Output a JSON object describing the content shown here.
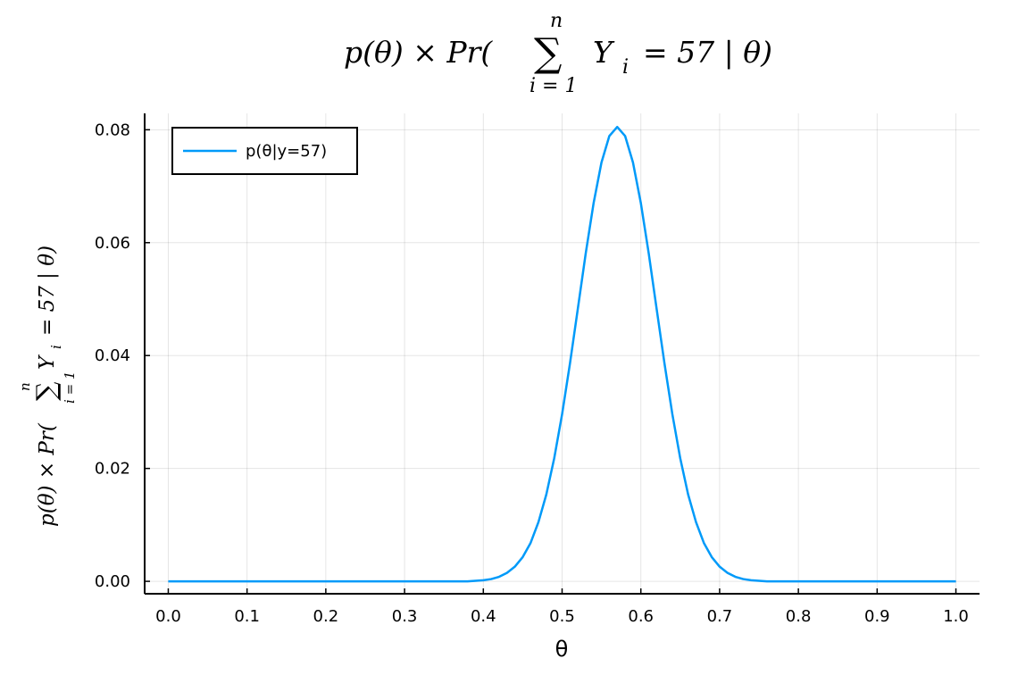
{
  "chart_data": {
    "type": "line",
    "title": {
      "prefix": "p(θ) × Pr(",
      "sum": "∑",
      "upper": "n",
      "lower": "i = 1",
      "var": "Y",
      "sub": "i",
      "rest": "= 57 | θ)"
    },
    "ylabel": {
      "prefix": "p(θ) × Pr(",
      "sum": "∑",
      "upper": "n",
      "lower": "i = 1",
      "var": "Y",
      "sub": "i",
      "rest": "= 57 | θ)"
    },
    "xlabel": "θ",
    "x": [
      0,
      0.01,
      0.02,
      0.03,
      0.04,
      0.05,
      0.06,
      0.07,
      0.08,
      0.09,
      0.1,
      0.11,
      0.12,
      0.13,
      0.14,
      0.15,
      0.16,
      0.17,
      0.18,
      0.19,
      0.2,
      0.21,
      0.22,
      0.23,
      0.24,
      0.25,
      0.26,
      0.27,
      0.28,
      0.29,
      0.3,
      0.31,
      0.32,
      0.33,
      0.34,
      0.35,
      0.36,
      0.37,
      0.38,
      0.39,
      0.4,
      0.41,
      0.42,
      0.43,
      0.44,
      0.45,
      0.46,
      0.47,
      0.48,
      0.49,
      0.5,
      0.51,
      0.52,
      0.53,
      0.54,
      0.55,
      0.56,
      0.57,
      0.58,
      0.59,
      0.6,
      0.61,
      0.62,
      0.63,
      0.64,
      0.65,
      0.66,
      0.67,
      0.68,
      0.69,
      0.7,
      0.71,
      0.72,
      0.73,
      0.74,
      0.75,
      0.76,
      0.77,
      0.78,
      0.79,
      0.8,
      0.81,
      0.82,
      0.83,
      0.84,
      0.85,
      0.86,
      0.87,
      0.88,
      0.89,
      0.9,
      0.91,
      0.92,
      0.93,
      0.94,
      0.95,
      0.96,
      0.97,
      0.98,
      0.99,
      1
    ],
    "series": [
      {
        "name": "p(θ|y=57)",
        "color": "#009af9",
        "values": [
          0,
          0,
          0,
          0,
          0,
          0,
          0,
          0,
          0,
          0,
          0,
          0,
          0,
          0,
          0,
          0,
          0,
          0,
          0,
          0,
          0,
          0,
          0,
          0,
          0,
          0,
          0,
          0,
          0,
          0,
          0,
          0,
          0,
          0,
          0,
          0,
          0,
          0,
          0,
          0.0001,
          0.0002,
          0.0004,
          0.0008,
          0.0015,
          0.0026,
          0.0043,
          0.0068,
          0.0105,
          0.0154,
          0.0218,
          0.0296,
          0.0386,
          0.0483,
          0.0581,
          0.067,
          0.0742,
          0.0789,
          0.0805,
          0.0789,
          0.0742,
          0.067,
          0.0581,
          0.0483,
          0.0386,
          0.0296,
          0.0218,
          0.0154,
          0.0105,
          0.0068,
          0.0043,
          0.0026,
          0.0015,
          0.0008,
          0.0004,
          0.0002,
          0.0001,
          0,
          0,
          0,
          0,
          0,
          0,
          0,
          0,
          0,
          0,
          0,
          0,
          0,
          0,
          0,
          0,
          0,
          0,
          0,
          0,
          0,
          0,
          0,
          0,
          0
        ]
      }
    ],
    "xlim": [
      -0.03,
      1.03
    ],
    "ylim": [
      -0.0022,
      0.0829
    ],
    "xticks": [
      {
        "value": 0,
        "label": "0.0"
      },
      0.1,
      0.2,
      0.3,
      0.4,
      0.5,
      0.6,
      0.7,
      0.8,
      0.9,
      {
        "value": 1,
        "label": "1.0"
      }
    ],
    "yticks": [
      {
        "value": 0,
        "label": "0.00"
      },
      {
        "value": 0.02,
        "label": "0.02"
      },
      {
        "value": 0.04,
        "label": "0.04"
      },
      {
        "value": 0.06,
        "label": "0.06"
      },
      {
        "value": 0.08,
        "label": "0.08"
      }
    ],
    "grid": true,
    "legend": "top-left"
  }
}
